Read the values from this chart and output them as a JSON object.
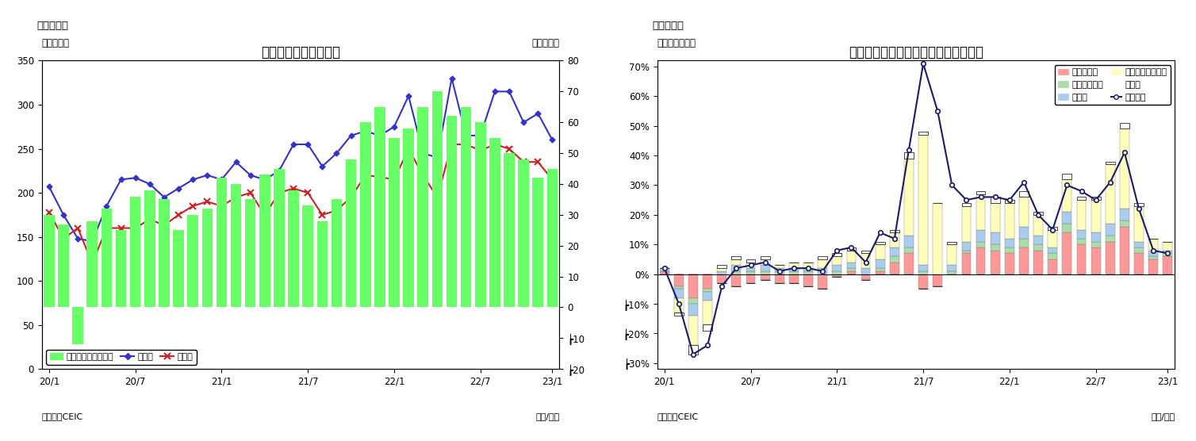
{
  "fig7": {
    "title": "マレーシア　貳易収支",
    "ylabel_left": "（億ドル）",
    "ylabel_right": "（億ドル）",
    "xlabel": "（年/月）",
    "source": "（資料）CEIC",
    "header": "（図表７）",
    "x_tick_labels": [
      "20/1",
      "20/7",
      "21/1",
      "21/7",
      "22/1",
      "22/7",
      "23/1"
    ],
    "x_tick_positions": [
      0,
      6,
      12,
      18,
      24,
      30,
      35
    ],
    "ylim_left": [
      0,
      350
    ],
    "ylim_right": [
      -20,
      80
    ],
    "yticks_left": [
      0,
      50,
      100,
      150,
      200,
      250,
      300,
      350
    ],
    "yticks_right": [
      -20,
      -10,
      0,
      10,
      20,
      30,
      40,
      50,
      60,
      70,
      80
    ],
    "ytick_labels_left": [
      "0",
      "50",
      "100",
      "150",
      "200",
      "250",
      "300",
      "350"
    ],
    "ytick_labels_right": [
      "┢20",
      "┢10",
      "0",
      "10",
      "20",
      "30",
      "40",
      "50",
      "60",
      "70",
      "80"
    ],
    "trade_balance": [
      30,
      27,
      -12,
      28,
      32,
      25,
      36,
      38,
      35,
      25,
      30,
      32,
      42,
      40,
      35,
      43,
      45,
      38,
      33,
      28,
      35,
      48,
      60,
      65,
      55,
      58,
      65,
      70,
      62,
      65,
      60,
      55,
      50,
      48,
      42,
      45
    ],
    "exports": [
      207,
      175,
      148,
      145,
      185,
      215,
      217,
      210,
      195,
      205,
      215,
      220,
      215,
      235,
      220,
      215,
      225,
      255,
      255,
      230,
      245,
      265,
      270,
      265,
      275,
      310,
      245,
      240,
      330,
      265,
      265,
      315,
      315,
      280,
      290,
      260
    ],
    "imports": [
      178,
      148,
      160,
      120,
      160,
      160,
      160,
      170,
      163,
      175,
      185,
      190,
      185,
      195,
      200,
      175,
      200,
      205,
      200,
      175,
      180,
      195,
      220,
      218,
      215,
      250,
      220,
      195,
      255,
      255,
      248,
      255,
      250,
      235,
      235,
      215
    ],
    "bar_color": "#66FF66",
    "export_color": "#3333CC",
    "import_color": "#CC2222",
    "legend_export": "輸出額",
    "legend_import": "輸入額",
    "legend_balance": "貳易収支（右目盛）"
  },
  "fig8": {
    "title": "マレーシア　輸出の伸び率（品目別）",
    "ylabel_left": "（前年同月比）",
    "xlabel": "（年/月）",
    "source": "（資料）CEIC",
    "header": "（図表８）",
    "x_tick_labels": [
      "20/1",
      "20/7",
      "21/1",
      "21/7",
      "22/1",
      "22/7",
      "23/1"
    ],
    "x_tick_positions": [
      0,
      6,
      12,
      18,
      24,
      30,
      35
    ],
    "ylim": [
      -0.32,
      0.72
    ],
    "yticks": [
      -0.3,
      -0.2,
      -0.1,
      0.0,
      0.1,
      0.2,
      0.3,
      0.4,
      0.5,
      0.6,
      0.7
    ],
    "ytick_labels": [
      "┢30%",
      "┢20%",
      "┢10%",
      "0%",
      "10%",
      "20%",
      "30%",
      "40%",
      "50%",
      "60%",
      "70%"
    ],
    "mineral_fuel": [
      0.01,
      -0.04,
      -0.08,
      -0.05,
      -0.03,
      -0.04,
      -0.03,
      -0.02,
      -0.03,
      -0.03,
      -0.04,
      -0.05,
      -0.01,
      0.01,
      -0.02,
      0.01,
      0.04,
      0.07,
      -0.05,
      -0.04,
      0.0,
      0.07,
      0.09,
      0.08,
      0.07,
      0.09,
      0.08,
      0.05,
      0.14,
      0.1,
      0.09,
      0.11,
      0.16,
      0.07,
      0.05,
      0.06
    ],
    "animal_veg_oil": [
      0.0,
      -0.01,
      -0.02,
      -0.01,
      0.0,
      0.01,
      0.01,
      0.01,
      0.01,
      0.01,
      0.01,
      0.0,
      0.01,
      0.01,
      0.0,
      0.01,
      0.02,
      0.02,
      0.01,
      0.0,
      0.01,
      0.01,
      0.02,
      0.02,
      0.02,
      0.03,
      0.02,
      0.02,
      0.03,
      0.02,
      0.02,
      0.02,
      0.02,
      0.02,
      0.01,
      0.01
    ],
    "manufactured": [
      0.01,
      -0.03,
      -0.04,
      -0.03,
      0.01,
      0.02,
      0.01,
      0.02,
      0.01,
      0.01,
      0.01,
      0.02,
      0.02,
      0.02,
      0.02,
      0.03,
      0.03,
      0.04,
      0.02,
      0.0,
      0.02,
      0.03,
      0.04,
      0.04,
      0.03,
      0.04,
      0.03,
      0.02,
      0.04,
      0.03,
      0.03,
      0.04,
      0.04,
      0.02,
      0.02,
      0.01
    ],
    "machinery": [
      0.0,
      -0.05,
      -0.1,
      -0.08,
      0.01,
      0.02,
      0.02,
      0.02,
      0.01,
      0.02,
      0.02,
      0.03,
      0.03,
      0.04,
      0.05,
      0.05,
      0.05,
      0.26,
      0.44,
      0.24,
      0.07,
      0.12,
      0.12,
      0.1,
      0.12,
      0.1,
      0.07,
      0.06,
      0.11,
      0.1,
      0.11,
      0.2,
      0.27,
      0.12,
      0.04,
      0.03
    ],
    "other": [
      0.0,
      -0.01,
      -0.03,
      -0.02,
      0.01,
      0.01,
      0.01,
      0.01,
      0.0,
      0.0,
      0.0,
      0.01,
      0.01,
      0.01,
      0.01,
      0.01,
      0.01,
      0.02,
      0.01,
      0.0,
      0.01,
      0.01,
      0.01,
      0.02,
      0.01,
      0.02,
      0.01,
      0.01,
      0.02,
      0.01,
      0.01,
      0.01,
      0.02,
      0.01,
      0.0,
      0.0
    ],
    "total_exports": [
      0.02,
      -0.1,
      -0.27,
      -0.24,
      -0.04,
      0.02,
      0.03,
      0.04,
      0.01,
      0.02,
      0.02,
      0.01,
      0.08,
      0.09,
      0.04,
      0.14,
      0.12,
      0.42,
      0.71,
      0.55,
      0.3,
      0.25,
      0.26,
      0.26,
      0.25,
      0.31,
      0.2,
      0.15,
      0.3,
      0.28,
      0.25,
      0.31,
      0.41,
      0.22,
      0.08,
      0.07
    ],
    "mineral_fuel_color": "#FF9999",
    "animal_veg_oil_color": "#AADDAA",
    "manufactured_color": "#AACCEE",
    "machinery_color": "#FFFFBB",
    "other_color": "#FFFFFF",
    "total_color": "#1a1a6e",
    "legend_mineral": "鉱物性燃料",
    "legend_animal": "動植物性油脂",
    "legend_mfg": "製造品",
    "legend_machinery": "機械・輸送用機器",
    "legend_other": "その他",
    "legend_total": "輸出合計"
  }
}
